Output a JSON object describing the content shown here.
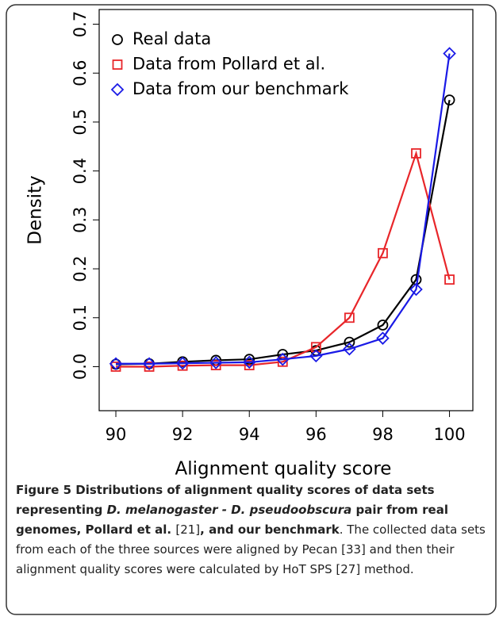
{
  "chart_data": {
    "type": "line",
    "x_label": "Alignment quality score",
    "y_label": "Density",
    "x": [
      90,
      91,
      92,
      93,
      94,
      95,
      96,
      97,
      98,
      99,
      100
    ],
    "xlim": [
      89.5,
      100.7
    ],
    "xticks": [
      90,
      92,
      94,
      96,
      98,
      100
    ],
    "ylim": [
      -0.09,
      0.73
    ],
    "yticks": [
      {
        "value": 0,
        "label": "0.0"
      },
      0.1,
      0.2,
      0.3,
      0.4,
      0.5,
      0.6,
      0.7
    ],
    "legend": "top-left",
    "series": [
      {
        "name": "Real data",
        "color": "#000000",
        "marker": "circle",
        "values": [
          0.005,
          0.006,
          0.01,
          0.013,
          0.015,
          0.025,
          0.033,
          0.05,
          0.085,
          0.178,
          0.545
        ]
      },
      {
        "name": "Data from Pollard et al.",
        "color": "#e8262a",
        "marker": "square",
        "values": [
          0.0,
          0.0,
          0.002,
          0.003,
          0.003,
          0.01,
          0.04,
          0.1,
          0.232,
          0.436,
          0.178
        ]
      },
      {
        "name": "Data from our benchmark",
        "color": "#1a1ae6",
        "marker": "diamond",
        "values": [
          0.006,
          0.006,
          0.007,
          0.008,
          0.009,
          0.015,
          0.022,
          0.036,
          0.058,
          0.158,
          0.64
        ]
      }
    ]
  },
  "caption": [
    {
      "text": "Figure 5 Distributions of alignment quality scores of data sets representing ",
      "bold": true,
      "italic": false
    },
    {
      "text": "D. melanogaster - D. pseudoobscura",
      "bold": true,
      "italic": true
    },
    {
      "text": " pair from real genomes, Pollard et al. ",
      "bold": true,
      "italic": false
    },
    {
      "text": "[21]",
      "bold": false,
      "italic": false
    },
    {
      "text": ", and our benchmark",
      "bold": true,
      "italic": false
    },
    {
      "text": ". The collected data sets from each of the three sources were aligned by Pecan [33] and then their alignment quality scores were calculated by HoT SPS [27] method.",
      "bold": false,
      "italic": false
    }
  ]
}
